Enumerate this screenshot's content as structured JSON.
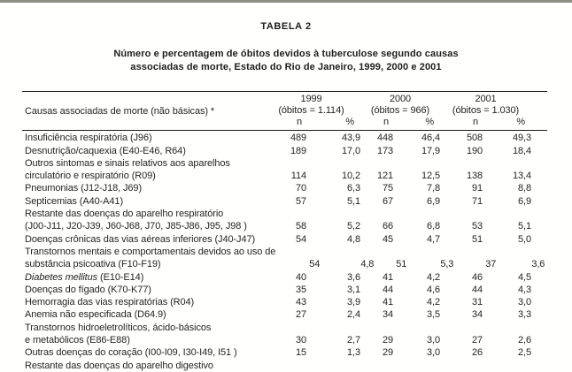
{
  "page": {
    "table_label": "TABELA 2",
    "subtitle_line1": "Número e percentagem de óbitos devidos à tuberculose segundo causas",
    "subtitle_line2": "associadas de morte, Estado do Rio de Janeiro, 1999, 2000 e 2001",
    "colors": {
      "background": "#fffffb",
      "top_border": "#8e8e83",
      "text": "#222222",
      "rule": "#1a1a1a"
    }
  },
  "table": {
    "stub_header": "Causas associadas de morte (não básicas) *",
    "col_n": "n",
    "col_pct": "%",
    "year_groups": [
      {
        "year": "1999",
        "obitos": "(óbitos = 1.114)"
      },
      {
        "year": "2000",
        "obitos": "(óbitos = 966)"
      },
      {
        "year": "2001",
        "obitos": "(óbitos = 1.030)"
      }
    ],
    "rows": [
      {
        "label_lines": [
          "Insuficiência respiratória (J96)"
        ],
        "values": [
          "489",
          "43,9",
          "448",
          "46,4",
          "508",
          "49,3"
        ]
      },
      {
        "label_lines": [
          "Desnutrição/caquexia (E40-E46, R64)"
        ],
        "values": [
          "189",
          "17,0",
          "173",
          "17,9",
          "190",
          "18,4"
        ]
      },
      {
        "label_lines": [
          "Outros sintomas e sinais relativos aos aparelhos",
          "circulatório e respiratório (R09)"
        ],
        "values": [
          "114",
          "10,2",
          "121",
          "12,5",
          "138",
          "13,4"
        ]
      },
      {
        "label_lines": [
          "Pneumonias (J12-J18, J69)"
        ],
        "values": [
          "70",
          "6,3",
          "75",
          "7,8",
          "91",
          "8,8"
        ]
      },
      {
        "label_lines": [
          "Septicemias (A40-A41)"
        ],
        "values": [
          "57",
          "5,1",
          "67",
          "6,9",
          "71",
          "6,9"
        ]
      },
      {
        "label_lines": [
          "Restante das doenças do aparelho respiratório",
          "(J00-J11, J20-J39, J60-J68, J70, J85-J86, J95, J98 )"
        ],
        "values": [
          "58",
          "5,2",
          "66",
          "6,8",
          "53",
          "5,1"
        ]
      },
      {
        "label_lines": [
          "Doenças crônicas das vias aéreas inferiores (J40-J47)"
        ],
        "values": [
          "54",
          "4,8",
          "45",
          "4,7",
          "51",
          "5,0"
        ]
      },
      {
        "label_lines": [
          "Transtornos mentais e comportamentais devidos ao uso de",
          "substância psicoativa (F10-F19)"
        ],
        "values": [
          "54",
          "4,8",
          "51",
          "5,3",
          "37",
          "3,6"
        ]
      },
      {
        "em": "Diabetes mellitus",
        "label_lines": [
          " (E10-E14)"
        ],
        "values": [
          "40",
          "3,6",
          "41",
          "4,2",
          "46",
          "4,5"
        ]
      },
      {
        "label_lines": [
          "Doenças do fígado (K70-K77)"
        ],
        "values": [
          "35",
          "3,1",
          "44",
          "4,6",
          "44",
          "4,3"
        ]
      },
      {
        "label_lines": [
          "Hemorragia das vias respiratórias (R04)"
        ],
        "values": [
          "43",
          "3,9",
          "41",
          "4,2",
          "31",
          "3,0"
        ]
      },
      {
        "label_lines": [
          "Anemia não especificada (D64.9)"
        ],
        "values": [
          "27",
          "2,4",
          "34",
          "3,5",
          "34",
          "3,3"
        ]
      },
      {
        "label_lines": [
          "Transtornos hidroeletrolíticos, ácido-básicos",
          "e metabólicos (E86-E88)"
        ],
        "values": [
          "30",
          "2,7",
          "29",
          "3,0",
          "27",
          "2,6"
        ]
      },
      {
        "label_lines": [
          "Outras doenças do coração (I00-I09, I30-I49, I51 )"
        ],
        "values": [
          "15",
          "1,3",
          "29",
          "3,0",
          "26",
          "2,5"
        ]
      },
      {
        "label_lines": [
          "Restante das doenças do aparelho digestivo"
        ],
        "values": []
      }
    ]
  }
}
